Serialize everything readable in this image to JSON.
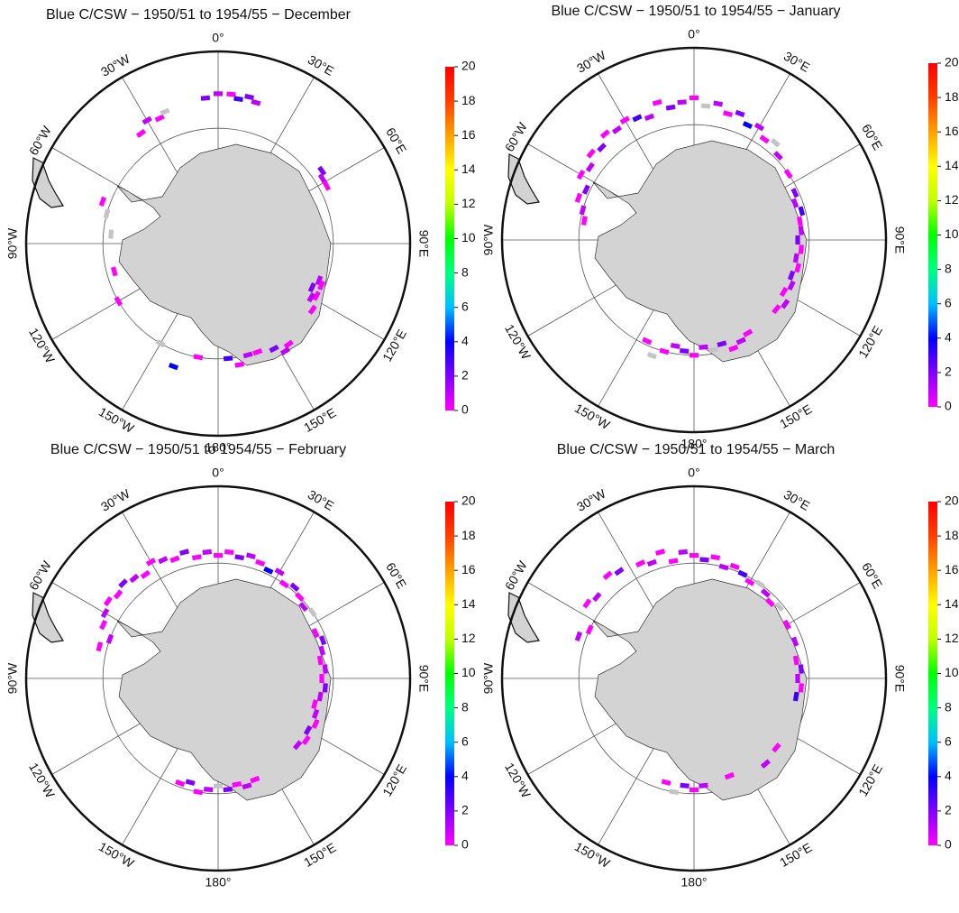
{
  "lat_range": [
    -90,
    -40
  ],
  "colorbar": {
    "ticks": [
      0,
      2,
      4,
      6,
      8,
      10,
      12,
      14,
      16,
      18,
      20
    ],
    "colors": [
      "#ff00ff",
      "#8000ff",
      "#0000ff",
      "#00c0ff",
      "#00ff80",
      "#00ff00",
      "#c0ff00",
      "#ffff00",
      "#ffa000",
      "#ff4000",
      "#ff0000"
    ],
    "no_data_color": "#c4c4c4"
  },
  "graticule": {
    "labels": [
      {
        "lon": 0,
        "label": "0°"
      },
      {
        "lon": 30,
        "label": "30°E"
      },
      {
        "lon": 60,
        "label": "60°E"
      },
      {
        "lon": 90,
        "label": "90°E"
      },
      {
        "lon": 120,
        "label": "120°E"
      },
      {
        "lon": 150,
        "label": "150°E"
      },
      {
        "lon": 180,
        "label": "180°"
      },
      {
        "lon": -150,
        "label": "150°W"
      },
      {
        "lon": -120,
        "label": "120°W"
      },
      {
        "lon": -90,
        "label": "90°W"
      },
      {
        "lon": -60,
        "label": "60°W"
      },
      {
        "lon": -30,
        "label": "30°W"
      }
    ]
  },
  "panels": [
    {
      "title": "Blue C/CSW − 1950/51 to 1954/55 − December",
      "cells": [
        [
          -5,
          -52,
          2
        ],
        [
          0,
          -51,
          1
        ],
        [
          5,
          -51,
          0
        ],
        [
          8,
          -52,
          3
        ],
        [
          12,
          -51,
          2
        ],
        [
          15,
          -52,
          1
        ],
        [
          -30,
          -53,
          1
        ],
        [
          -25,
          -54,
          0
        ],
        [
          -22,
          -53,
          null
        ],
        [
          -35,
          -55,
          0
        ],
        [
          55,
          -57,
          2
        ],
        [
          58,
          -58,
          1
        ],
        [
          62,
          -58,
          0
        ],
        [
          -70,
          -58,
          0
        ],
        [
          -75,
          -60,
          null
        ],
        [
          -85,
          -62,
          null
        ],
        [
          -105,
          -62,
          0
        ],
        [
          110,
          -62,
          1
        ],
        [
          112,
          -61,
          0
        ],
        [
          115,
          -63,
          2
        ],
        [
          118,
          -61,
          0
        ],
        [
          120,
          -62,
          1
        ],
        [
          125,
          -60,
          0
        ],
        [
          145,
          -58,
          0
        ],
        [
          148,
          -57,
          1
        ],
        [
          152,
          -59,
          2
        ],
        [
          160,
          -60,
          0
        ],
        [
          165,
          -60,
          1
        ],
        [
          170,
          -58,
          0
        ],
        [
          175,
          -60,
          3
        ],
        [
          -170,
          -60,
          0
        ],
        [
          -160,
          -56,
          4
        ],
        [
          -150,
          -60,
          null
        ],
        [
          -120,
          -60,
          0
        ]
      ]
    },
    {
      "title": "Blue C/CSW − 1950/51 to 1954/55 − January",
      "cells": [
        [
          -60,
          -56,
          0
        ],
        [
          -55,
          -57,
          1
        ],
        [
          -50,
          -55,
          0
        ],
        [
          -45,
          -56,
          2
        ],
        [
          -40,
          -54,
          0
        ],
        [
          -35,
          -55,
          1
        ],
        [
          -30,
          -54,
          0
        ],
        [
          -25,
          -55,
          3
        ],
        [
          -20,
          -56,
          1
        ],
        [
          -15,
          -53,
          0
        ],
        [
          -10,
          -55,
          2
        ],
        [
          -5,
          -54,
          1
        ],
        [
          0,
          -53,
          0
        ],
        [
          5,
          -55,
          null
        ],
        [
          10,
          -54,
          1
        ],
        [
          15,
          -56,
          0
        ],
        [
          20,
          -55,
          2
        ],
        [
          25,
          -57,
          4
        ],
        [
          30,
          -56,
          1
        ],
        [
          35,
          -58,
          0
        ],
        [
          40,
          -57,
          null
        ],
        [
          45,
          -59,
          1
        ],
        [
          -70,
          -58,
          0
        ],
        [
          -75,
          -60,
          1
        ],
        [
          -65,
          -59,
          2
        ],
        [
          -80,
          -61,
          0
        ],
        [
          55,
          -60,
          0
        ],
        [
          65,
          -61,
          2
        ],
        [
          70,
          -62,
          1
        ],
        [
          75,
          -61,
          3
        ],
        [
          80,
          -62,
          0
        ],
        [
          85,
          -62,
          1
        ],
        [
          90,
          -63,
          2
        ],
        [
          95,
          -62,
          0
        ],
        [
          100,
          -63,
          1
        ],
        [
          105,
          -62,
          0
        ],
        [
          110,
          -63,
          2
        ],
        [
          115,
          -62,
          1
        ],
        [
          120,
          -63,
          0
        ],
        [
          125,
          -61,
          1
        ],
        [
          130,
          -62,
          0
        ],
        [
          150,
          -62,
          0
        ],
        [
          155,
          -61,
          1
        ],
        [
          160,
          -60,
          0
        ],
        [
          165,
          -62,
          2
        ],
        [
          170,
          -61,
          null
        ],
        [
          175,
          -62,
          1
        ],
        [
          180,
          -60,
          0
        ],
        [
          -175,
          -61,
          2
        ],
        [
          -170,
          -62,
          1
        ],
        [
          -165,
          -60,
          0
        ],
        [
          -160,
          -58,
          null
        ],
        [
          -155,
          -61,
          0
        ]
      ]
    },
    {
      "title": "Blue C/CSW − 1950/51 to 1954/55 − February",
      "cells": [
        [
          -65,
          -57,
          0
        ],
        [
          -60,
          -56,
          1
        ],
        [
          -55,
          -55,
          0
        ],
        [
          -50,
          -56,
          0
        ],
        [
          -45,
          -55,
          2
        ],
        [
          -40,
          -56,
          1
        ],
        [
          -35,
          -57,
          0
        ],
        [
          -30,
          -55,
          0
        ],
        [
          -25,
          -56,
          1
        ],
        [
          -20,
          -57,
          0
        ],
        [
          -15,
          -56,
          2
        ],
        [
          -10,
          -58,
          0
        ],
        [
          -5,
          -57,
          1
        ],
        [
          0,
          -58,
          0
        ],
        [
          5,
          -57,
          0
        ],
        [
          10,
          -58,
          2
        ],
        [
          15,
          -57,
          1
        ],
        [
          20,
          -58,
          0
        ],
        [
          25,
          -59,
          4
        ],
        [
          30,
          -58,
          1
        ],
        [
          35,
          -60,
          0
        ],
        [
          40,
          -59,
          2
        ],
        [
          45,
          -60,
          0
        ],
        [
          50,
          -61,
          1
        ],
        [
          55,
          -60,
          null
        ],
        [
          -75,
          -58,
          0
        ],
        [
          -70,
          -60,
          1
        ],
        [
          65,
          -62,
          0
        ],
        [
          70,
          -61,
          2
        ],
        [
          75,
          -62,
          1
        ],
        [
          80,
          -63,
          0
        ],
        [
          85,
          -62,
          1
        ],
        [
          90,
          -63,
          0
        ],
        [
          95,
          -62,
          2
        ],
        [
          100,
          -63,
          1
        ],
        [
          105,
          -64,
          0
        ],
        [
          110,
          -63,
          1
        ],
        [
          115,
          -62,
          0
        ],
        [
          120,
          -63,
          2
        ],
        [
          125,
          -62,
          0
        ],
        [
          130,
          -63,
          1
        ],
        [
          160,
          -62,
          0
        ],
        [
          165,
          -61,
          1
        ],
        [
          170,
          -62,
          0
        ],
        [
          175,
          -61,
          2
        ],
        [
          180,
          -62,
          null
        ],
        [
          -175,
          -61,
          1
        ],
        [
          -170,
          -60,
          0
        ],
        [
          -165,
          -62,
          2
        ],
        [
          -160,
          -61,
          0
        ]
      ]
    },
    {
      "title": "Blue C/CSW − 1950/51 to 1954/55 − March",
      "cells": [
        [
          -55,
          -56,
          0
        ],
        [
          -50,
          -57,
          1
        ],
        [
          -40,
          -55,
          0
        ],
        [
          -35,
          -56,
          2
        ],
        [
          -25,
          -57,
          0
        ],
        [
          -20,
          -58,
          1
        ],
        [
          -15,
          -56,
          0
        ],
        [
          -10,
          -59,
          0
        ],
        [
          -5,
          -57,
          1
        ],
        [
          0,
          -58,
          0
        ],
        [
          5,
          -59,
          2
        ],
        [
          10,
          -58,
          0
        ],
        [
          15,
          -60,
          1
        ],
        [
          20,
          -59,
          0
        ],
        [
          25,
          -60,
          3
        ],
        [
          30,
          -61,
          0
        ],
        [
          35,
          -60,
          null
        ],
        [
          40,
          -61,
          1
        ],
        [
          45,
          -62,
          0
        ],
        [
          50,
          -61,
          null
        ],
        [
          -70,
          -58,
          1
        ],
        [
          -65,
          -60,
          0
        ],
        [
          60,
          -62,
          0
        ],
        [
          70,
          -62,
          1
        ],
        [
          80,
          -63,
          0
        ],
        [
          85,
          -62,
          2
        ],
        [
          90,
          -63,
          1
        ],
        [
          95,
          -62,
          0
        ],
        [
          100,
          -63,
          3
        ],
        [
          130,
          -62,
          0
        ],
        [
          140,
          -61,
          1
        ],
        [
          160,
          -63,
          0
        ],
        [
          175,
          -62,
          1
        ],
        [
          180,
          -61,
          0
        ],
        [
          -175,
          -62,
          2
        ],
        [
          -170,
          -60,
          null
        ],
        [
          -165,
          -62,
          0
        ]
      ]
    }
  ]
}
